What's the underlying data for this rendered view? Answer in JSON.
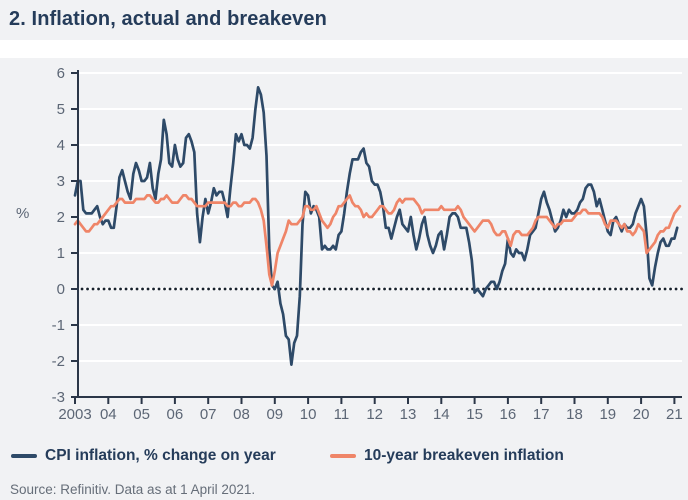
{
  "header": {
    "title": "2. Inflation, actual and breakeven"
  },
  "source_note": "Source: Refinitiv. Data as at 1 April 2021.",
  "colors": {
    "panel_bg": "#f1f2f4",
    "gridline": "#ffffff",
    "axis": "#2b3648",
    "zero_line": "#17202b",
    "tick_label": "#5c6675",
    "title_text": "#253c5a",
    "cpi_line": "#2e4a68",
    "breakeven_line": "#ef8568"
  },
  "chart_data": {
    "type": "line",
    "title": "2. Inflation, actual and breakeven",
    "xlabel": "",
    "ylabel": "%",
    "ylim": [
      -3,
      6
    ],
    "y_ticks": [
      6,
      5,
      4,
      3,
      2,
      1,
      0,
      -1,
      -2,
      -3
    ],
    "x_tick_labels": [
      "2003",
      "04",
      "05",
      "06",
      "07",
      "08",
      "09",
      "10",
      "11",
      "12",
      "13",
      "14",
      "15",
      "16",
      "17",
      "18",
      "19",
      "20",
      "21"
    ],
    "x_start_year": 2003,
    "frequency": "monthly",
    "grid": "horizontal-white",
    "zero_line_style": "black-dotted",
    "legend_position": "bottom",
    "series": [
      {
        "name": "CPI inflation, % change on year",
        "color": "#2e4a68",
        "values": [
          2.6,
          3.0,
          3.0,
          2.2,
          2.1,
          2.1,
          2.1,
          2.2,
          2.3,
          2.0,
          1.8,
          1.9,
          1.9,
          1.7,
          1.7,
          2.3,
          3.1,
          3.3,
          3.0,
          2.7,
          2.5,
          3.2,
          3.5,
          3.3,
          3.0,
          3.0,
          3.1,
          3.5,
          2.8,
          2.5,
          3.2,
          3.6,
          4.7,
          4.3,
          3.5,
          3.4,
          4.0,
          3.6,
          3.4,
          3.5,
          4.2,
          4.3,
          4.1,
          3.8,
          2.1,
          1.3,
          2.0,
          2.5,
          2.1,
          2.4,
          2.8,
          2.6,
          2.7,
          2.7,
          2.4,
          2.0,
          2.8,
          3.5,
          4.3,
          4.1,
          4.3,
          4.0,
          4.0,
          3.9,
          4.2,
          5.0,
          5.6,
          5.4,
          4.9,
          3.7,
          1.1,
          0.1,
          0.0,
          0.2,
          -0.4,
          -0.7,
          -1.3,
          -1.4,
          -2.1,
          -1.5,
          -1.3,
          -0.2,
          1.8,
          2.7,
          2.6,
          2.1,
          2.3,
          2.2,
          2.0,
          1.1,
          1.2,
          1.1,
          1.1,
          1.2,
          1.1,
          1.5,
          1.6,
          2.1,
          2.7,
          3.2,
          3.6,
          3.6,
          3.6,
          3.8,
          3.9,
          3.5,
          3.4,
          3.0,
          2.9,
          2.9,
          2.7,
          2.3,
          1.7,
          1.7,
          1.4,
          1.7,
          2.0,
          2.2,
          1.8,
          1.7,
          1.6,
          2.0,
          1.5,
          1.1,
          1.4,
          1.8,
          2.0,
          1.5,
          1.2,
          1.0,
          1.2,
          1.5,
          1.6,
          1.1,
          1.5,
          2.0,
          2.1,
          2.1,
          2.0,
          1.7,
          1.7,
          1.7,
          1.3,
          0.8,
          -0.1,
          0.0,
          -0.1,
          -0.2,
          0.0,
          0.1,
          0.2,
          0.2,
          0.0,
          0.2,
          0.5,
          0.7,
          1.4,
          1.0,
          0.9,
          1.1,
          1.0,
          1.0,
          0.8,
          1.1,
          1.5,
          1.6,
          1.7,
          2.1,
          2.5,
          2.7,
          2.4,
          2.2,
          1.9,
          1.6,
          1.7,
          1.9,
          2.2,
          2.0,
          2.2,
          2.1,
          2.1,
          2.2,
          2.4,
          2.5,
          2.8,
          2.9,
          2.9,
          2.7,
          2.3,
          2.5,
          2.2,
          1.9,
          1.6,
          1.5,
          1.9,
          2.0,
          1.8,
          1.6,
          1.8,
          1.7,
          1.7,
          1.8,
          2.1,
          2.3,
          2.5,
          2.3,
          1.5,
          0.3,
          0.1,
          0.6,
          1.0,
          1.3,
          1.4,
          1.2,
          1.2,
          1.4,
          1.4,
          1.7
        ]
      },
      {
        "name": "10-year breakeven inflation",
        "color": "#ef8568",
        "values": [
          1.8,
          1.9,
          1.8,
          1.7,
          1.6,
          1.6,
          1.7,
          1.8,
          1.8,
          1.9,
          2.0,
          2.1,
          2.2,
          2.3,
          2.3,
          2.4,
          2.5,
          2.5,
          2.4,
          2.4,
          2.4,
          2.4,
          2.5,
          2.5,
          2.5,
          2.5,
          2.6,
          2.6,
          2.5,
          2.4,
          2.4,
          2.5,
          2.5,
          2.6,
          2.5,
          2.4,
          2.4,
          2.4,
          2.5,
          2.6,
          2.6,
          2.5,
          2.5,
          2.4,
          2.3,
          2.3,
          2.3,
          2.3,
          2.4,
          2.4,
          2.4,
          2.4,
          2.4,
          2.4,
          2.4,
          2.3,
          2.3,
          2.4,
          2.4,
          2.3,
          2.3,
          2.4,
          2.4,
          2.4,
          2.5,
          2.5,
          2.4,
          2.2,
          1.9,
          1.2,
          0.4,
          0.1,
          0.5,
          1.0,
          1.2,
          1.4,
          1.6,
          1.9,
          1.8,
          1.8,
          1.8,
          1.9,
          2.0,
          2.3,
          2.3,
          2.2,
          2.2,
          2.3,
          2.1,
          1.9,
          1.8,
          1.7,
          1.8,
          2.0,
          2.1,
          2.3,
          2.3,
          2.4,
          2.5,
          2.6,
          2.4,
          2.3,
          2.3,
          2.2,
          2.0,
          2.1,
          2.0,
          2.0,
          2.1,
          2.2,
          2.3,
          2.3,
          2.2,
          2.1,
          2.1,
          2.2,
          2.4,
          2.5,
          2.4,
          2.5,
          2.5,
          2.5,
          2.5,
          2.4,
          2.3,
          2.1,
          2.2,
          2.2,
          2.2,
          2.2,
          2.2,
          2.2,
          2.3,
          2.2,
          2.2,
          2.2,
          2.2,
          2.2,
          2.3,
          2.2,
          2.0,
          1.9,
          1.8,
          1.7,
          1.6,
          1.7,
          1.8,
          1.9,
          1.9,
          1.9,
          1.8,
          1.6,
          1.5,
          1.5,
          1.6,
          1.6,
          1.4,
          1.2,
          1.5,
          1.6,
          1.6,
          1.5,
          1.5,
          1.5,
          1.6,
          1.7,
          1.9,
          2.0,
          2.0,
          2.0,
          2.0,
          1.9,
          1.8,
          1.7,
          1.8,
          1.8,
          1.9,
          1.9,
          1.9,
          1.9,
          2.0,
          2.1,
          2.1,
          2.2,
          2.2,
          2.1,
          2.1,
          2.1,
          2.1,
          2.1,
          2.0,
          1.8,
          1.7,
          1.9,
          1.9,
          1.9,
          1.8,
          1.7,
          1.8,
          1.6,
          1.6,
          1.5,
          1.6,
          1.8,
          1.7,
          1.6,
          1.0,
          1.1,
          1.2,
          1.3,
          1.5,
          1.6,
          1.6,
          1.7,
          1.7,
          1.9,
          2.1,
          2.2,
          2.3
        ]
      }
    ]
  }
}
